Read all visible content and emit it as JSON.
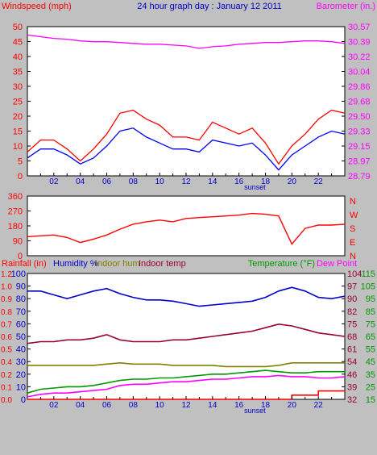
{
  "chart_data": [
    {
      "type": "line",
      "title": "24 hour graph day : January 12 2011",
      "left_axis_label": "Windspeed (mph)",
      "right_axis_label": "Barometer (in.)",
      "left_ticks": [
        "0",
        "5",
        "10",
        "15",
        "20",
        "25",
        "30",
        "35",
        "40",
        "45",
        "50"
      ],
      "right_ticks": [
        "28.79",
        "28.97",
        "29.15",
        "29.33",
        "29.50",
        "29.68",
        "29.86",
        "30.04",
        "30.22",
        "30.39",
        "30.57"
      ],
      "x_ticks": [
        "02",
        "04",
        "06",
        "08",
        "10",
        "12",
        "14",
        "16",
        "18",
        "20",
        "22"
      ],
      "x_annotation": "sunset",
      "colors": {
        "gust": "#ff0000",
        "avg": "#0000ff",
        "barometer": "#ff00ff",
        "left_axis": "#ff0000",
        "right_axis": "#ff00ff"
      },
      "ylim_left": [
        0,
        50
      ],
      "ylim_right": [
        28.79,
        30.57
      ],
      "x": [
        0,
        1,
        2,
        3,
        4,
        5,
        6,
        7,
        8,
        9,
        10,
        11,
        12,
        13,
        14,
        15,
        16,
        17,
        18,
        19,
        20,
        21,
        22,
        23,
        24
      ],
      "series": [
        {
          "name": "Windspeed gust",
          "axis": "left",
          "values": [
            8,
            12,
            12,
            9,
            5,
            9,
            14,
            21,
            22,
            19,
            17,
            13,
            13,
            12,
            18,
            16,
            14,
            16,
            11,
            4,
            10,
            14,
            19,
            22,
            21
          ]
        },
        {
          "name": "Windspeed avg",
          "axis": "left",
          "values": [
            6,
            9,
            9,
            7,
            4,
            6,
            10,
            15,
            16,
            13,
            11,
            9,
            9,
            8,
            12,
            11,
            10,
            11,
            7,
            2,
            7,
            10,
            13,
            15,
            14
          ]
        },
        {
          "name": "Barometer",
          "axis": "right",
          "values": [
            30.47,
            30.45,
            30.43,
            30.42,
            30.4,
            30.39,
            30.39,
            30.38,
            30.37,
            30.36,
            30.36,
            30.35,
            30.34,
            30.31,
            30.33,
            30.34,
            30.36,
            30.37,
            30.38,
            30.38,
            30.39,
            30.4,
            30.4,
            30.39,
            30.37
          ]
        }
      ]
    },
    {
      "type": "line",
      "left_ticks": [
        "0",
        "90",
        "180",
        "270",
        "360"
      ],
      "right_labels": [
        "N",
        "W",
        "S",
        "E",
        "N"
      ],
      "ylim": [
        0,
        360
      ],
      "x": [
        0,
        1,
        2,
        3,
        4,
        5,
        6,
        7,
        8,
        9,
        10,
        11,
        12,
        13,
        14,
        15,
        16,
        17,
        18,
        19,
        20,
        21,
        22,
        23,
        24
      ],
      "colors": {
        "direction": "#ff0000",
        "axis": "#ff0000"
      },
      "series": [
        {
          "name": "Wind direction",
          "values": [
            115,
            120,
            125,
            110,
            80,
            100,
            125,
            160,
            190,
            205,
            215,
            205,
            225,
            230,
            235,
            240,
            245,
            255,
            250,
            240,
            70,
            165,
            185,
            185,
            190
          ]
        }
      ]
    },
    {
      "type": "line",
      "legend": [
        {
          "label": "Rainfall (in)",
          "color": "#ff0000"
        },
        {
          "label": "Humidity %",
          "color": "#0000cc"
        },
        {
          "label": "Indoor hum",
          "color": "#808000"
        },
        {
          "label": "Indoor temp",
          "color": "#990033"
        },
        {
          "label": "Temperature (°F)",
          "color": "#009900"
        },
        {
          "label": "Dew Point",
          "color": "#ff00ff"
        }
      ],
      "left_ticks_humidity": [
        "0",
        "10",
        "20",
        "30",
        "40",
        "50",
        "60",
        "70",
        "80",
        "90",
        "100"
      ],
      "left_ticks_rain": [
        "0.0",
        "0.1",
        "0.2",
        "0.4",
        "0.5",
        "0.6",
        "0.7",
        "0.8",
        "0.9",
        "1.0",
        "1.2"
      ],
      "right_ticks_indoor": [
        "32",
        "39",
        "46",
        "54",
        "61",
        "68",
        "75",
        "82",
        "90",
        "97",
        "104"
      ],
      "right_ticks_outdoor": [
        "15",
        "25",
        "35",
        "45",
        "55",
        "65",
        "75",
        "85",
        "95",
        "105",
        "115"
      ],
      "x_ticks": [
        "02",
        "04",
        "06",
        "08",
        "10",
        "12",
        "14",
        "16",
        "18",
        "20",
        "22"
      ],
      "x_annotation": "sunset",
      "ylim_humidity": [
        0,
        100
      ],
      "ylim_indoor_temp": [
        32,
        104
      ],
      "ylim_outdoor_temp": [
        15,
        115
      ],
      "ylim_rain": [
        0,
        1.2
      ],
      "x": [
        0,
        1,
        2,
        3,
        4,
        5,
        6,
        7,
        8,
        9,
        10,
        11,
        12,
        13,
        14,
        15,
        16,
        17,
        18,
        19,
        20,
        21,
        22,
        23,
        24
      ],
      "series": [
        {
          "name": "Humidity %",
          "axis": "humidity",
          "color": "#0000cc",
          "values": [
            86,
            86,
            83,
            80,
            83,
            86,
            88,
            84,
            81,
            79,
            79,
            78,
            76,
            74,
            75,
            76,
            77,
            78,
            81,
            86,
            89,
            86,
            81,
            80,
            82
          ]
        },
        {
          "name": "Indoor hum",
          "axis": "humidity",
          "color": "#808000",
          "values": [
            27,
            27,
            27,
            27,
            27,
            27,
            28,
            29,
            28,
            28,
            28,
            27,
            27,
            27,
            27,
            26,
            26,
            26,
            26,
            27,
            29,
            29,
            29,
            29,
            29
          ]
        },
        {
          "name": "Indoor temp",
          "axis": "indoor_temp",
          "color": "#990033",
          "values": [
            64,
            65,
            65,
            66,
            66,
            67,
            69,
            66,
            65,
            65,
            65,
            66,
            66,
            67,
            68,
            69,
            70,
            71,
            73,
            75,
            74,
            72,
            70,
            69,
            68
          ]
        },
        {
          "name": "Temperature (°F)",
          "axis": "outdoor_temp",
          "color": "#009900",
          "values": [
            20,
            23,
            24,
            25,
            25,
            26,
            28,
            30,
            31,
            31,
            32,
            32,
            33,
            34,
            35,
            35,
            36,
            37,
            38,
            37,
            36,
            36,
            37,
            37,
            37
          ]
        },
        {
          "name": "Dew Point",
          "axis": "outdoor_temp",
          "color": "#ff00ff",
          "values": [
            17,
            19,
            20,
            20,
            21,
            22,
            23,
            26,
            27,
            27,
            28,
            29,
            29,
            30,
            31,
            31,
            32,
            33,
            33,
            34,
            33,
            33,
            32,
            32,
            33
          ]
        },
        {
          "name": "Rainfall (in)",
          "axis": "rain",
          "color": "#ff0000",
          "values": [
            0,
            0,
            0,
            0,
            0,
            0,
            0,
            0,
            0,
            0,
            0,
            0,
            0,
            0,
            0,
            0,
            0,
            0,
            0,
            0,
            0.04,
            0.04,
            0.08,
            0.08,
            0.08
          ]
        }
      ]
    }
  ]
}
